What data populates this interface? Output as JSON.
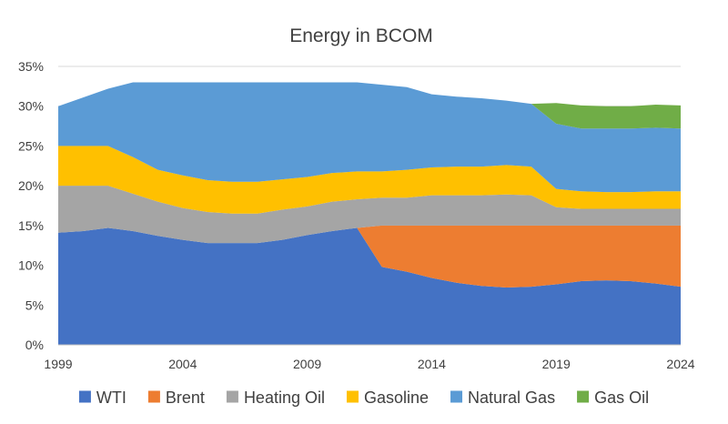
{
  "chart_data": {
    "type": "area",
    "stacked": true,
    "title": "Energy in BCOM",
    "xlabel": "",
    "ylabel": "",
    "x": [
      1999,
      2000,
      2001,
      2002,
      2003,
      2004,
      2005,
      2006,
      2007,
      2008,
      2009,
      2010,
      2011,
      2012,
      2013,
      2014,
      2015,
      2016,
      2017,
      2018,
      2019,
      2020,
      2021,
      2022,
      2023,
      2024
    ],
    "x_ticks": [
      1999,
      2004,
      2009,
      2014,
      2019,
      2024
    ],
    "x_tick_labels": [
      "1999",
      "2004",
      "2009",
      "2014",
      "2019",
      "2024"
    ],
    "ylim": [
      0,
      35
    ],
    "y_ticks": [
      0,
      5,
      10,
      15,
      20,
      25,
      30,
      35
    ],
    "y_tick_labels": [
      "0%",
      "5%",
      "10%",
      "15%",
      "20%",
      "25%",
      "30%",
      "35%"
    ],
    "grid": true,
    "legend_position": "bottom",
    "series": [
      {
        "name": "WTI",
        "color": "#4472C4",
        "values": [
          14.1,
          14.3,
          14.7,
          14.3,
          13.7,
          13.2,
          12.8,
          12.8,
          12.8,
          13.2,
          13.8,
          14.3,
          14.7,
          9.8,
          9.2,
          8.4,
          7.8,
          7.4,
          7.2,
          7.3,
          7.6,
          8.0,
          8.1,
          8.0,
          7.7,
          7.3
        ]
      },
      {
        "name": "Brent",
        "color": "#ED7D31",
        "values": [
          0,
          0,
          0,
          0,
          0,
          0,
          0,
          0,
          0,
          0,
          0,
          0,
          0,
          5.2,
          5.8,
          6.6,
          7.2,
          7.6,
          7.8,
          7.7,
          7.4,
          7.0,
          6.9,
          7.0,
          7.3,
          7.7
        ]
      },
      {
        "name": "Heating Oil",
        "color": "#A5A5A5",
        "values": [
          5.9,
          5.7,
          5.3,
          4.7,
          4.3,
          4.0,
          3.9,
          3.7,
          3.7,
          3.8,
          3.6,
          3.7,
          3.6,
          3.5,
          3.5,
          3.8,
          3.8,
          3.8,
          3.9,
          3.8,
          2.3,
          2.1,
          2.1,
          2.1,
          2.1,
          2.1
        ]
      },
      {
        "name": "Gasoline",
        "color": "#FFC000",
        "values": [
          5.0,
          5.0,
          5.0,
          4.6,
          4.0,
          4.1,
          4.0,
          4.0,
          4.0,
          3.8,
          3.7,
          3.6,
          3.5,
          3.3,
          3.5,
          3.5,
          3.6,
          3.6,
          3.7,
          3.6,
          2.3,
          2.2,
          2.1,
          2.1,
          2.2,
          2.2
        ]
      },
      {
        "name": "Natural Gas",
        "color": "#5B9BD5",
        "values": [
          5.0,
          6.1,
          7.2,
          9.4,
          11.0,
          11.7,
          12.3,
          12.5,
          12.5,
          12.2,
          11.9,
          11.4,
          11.2,
          10.9,
          10.4,
          9.2,
          8.8,
          8.6,
          8.1,
          7.9,
          8.2,
          7.9,
          8.0,
          8.0,
          8.0,
          7.9
        ]
      },
      {
        "name": "Gas Oil",
        "color": "#70AD47",
        "values": [
          0,
          0,
          0,
          0,
          0,
          0,
          0,
          0,
          0,
          0,
          0,
          0,
          0,
          0,
          0,
          0,
          0,
          0,
          0,
          0,
          2.6,
          2.9,
          2.8,
          2.8,
          2.9,
          2.9
        ]
      }
    ]
  }
}
